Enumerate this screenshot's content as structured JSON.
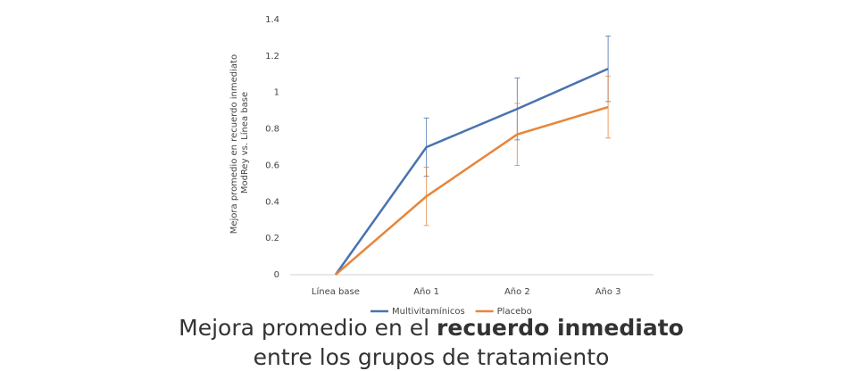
{
  "chart_data": {
    "type": "line",
    "y_label": [
      "Mejora promedio en recuerdo inmediato",
      "ModRey vs. Línea base"
    ],
    "categories": [
      "Línea base",
      "Año 1",
      "Año 2",
      "Año 3"
    ],
    "series": [
      {
        "name": "Multivitamínicos",
        "color": "#4a72b0",
        "values": [
          0,
          0.7,
          0.91,
          1.13
        ],
        "errors": [
          null,
          0.16,
          0.17,
          0.18
        ]
      },
      {
        "name": "Placebo",
        "color": "#e8853b",
        "values": [
          0,
          0.43,
          0.77,
          0.92
        ],
        "errors": [
          null,
          0.16,
          0.17,
          0.17
        ]
      }
    ],
    "ylim": [
      0,
      1.4
    ],
    "yticks": [
      0,
      0.2,
      0.4,
      0.6,
      0.8,
      1,
      1.2,
      1.4
    ],
    "grid": false,
    "legend": "bottom"
  },
  "caption": {
    "line1": "Mejora promedio en el",
    "line1_bold": "recuerdo inmediato",
    "line2": "entre los grupos de tratamiento"
  }
}
